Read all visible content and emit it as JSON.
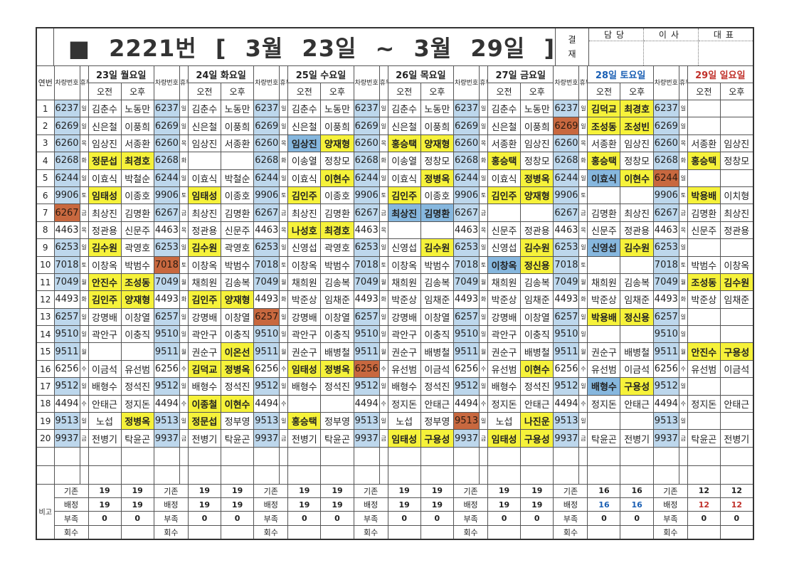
{
  "title": "■ 2221번 [ 3월 23일 ~ 3월 29일 ]",
  "approval": {
    "label_top": "결",
    "label_bottom": "재",
    "columns": [
      "담당",
      "이사",
      "대표"
    ]
  },
  "headers": {
    "seq": "연번",
    "car": "차량번호",
    "rest": "휴무",
    "am": "오전",
    "pm": "오후"
  },
  "days": [
    {
      "label": "23일 월요일",
      "color": ""
    },
    {
      "label": "24일 화요일",
      "color": ""
    },
    {
      "label": "25일 수요일",
      "color": ""
    },
    {
      "label": "26일 목요일",
      "color": ""
    },
    {
      "label": "27일 금요일",
      "color": ""
    },
    {
      "label": "28일 토요일",
      "color": "#1a5fb4"
    },
    {
      "label": "29일 일요일",
      "color": "#c0302a"
    }
  ],
  "colors": {
    "car_blue": "#bdd7ec",
    "car_orange": "#c8683f",
    "highlight_yellow": "#f6f23a",
    "highlight_blue": "#86b7de"
  },
  "rows": [
    {
      "no": "1",
      "car": "6237",
      "rest": "일",
      "car_color": "blue",
      "orange_day": -1,
      "cells": [
        [
          "김춘수",
          "노동만",
          "",
          ""
        ],
        [
          "김춘수",
          "노동만",
          "",
          ""
        ],
        [
          "김춘수",
          "노동만",
          "",
          ""
        ],
        [
          "김춘수",
          "노동만",
          "",
          ""
        ],
        [
          "김춘수",
          "노동만",
          "",
          ""
        ],
        [
          "김덕교",
          "최경호",
          "y",
          "y"
        ],
        [
          "",
          "",
          "",
          ""
        ]
      ]
    },
    {
      "no": "2",
      "car": "6269",
      "rest": "일",
      "car_color": "blue",
      "orange_day": 5,
      "cells": [
        [
          "신은철",
          "이풍희",
          "",
          ""
        ],
        [
          "신은철",
          "이풍희",
          "",
          ""
        ],
        [
          "신은철",
          "이풍희",
          "",
          ""
        ],
        [
          "신은철",
          "이풍희",
          "",
          ""
        ],
        [
          "신은철",
          "이풍희",
          "",
          ""
        ],
        [
          "조성동",
          "조성빈",
          "y",
          "y"
        ],
        [
          "",
          "",
          "",
          ""
        ]
      ]
    },
    {
      "no": "3",
      "car": "6260",
      "rest": "목",
      "car_color": "blue",
      "orange_day": -1,
      "cells": [
        [
          "임상진",
          "서종환",
          "",
          ""
        ],
        [
          "임상진",
          "서종환",
          "",
          ""
        ],
        [
          "임상진",
          "양재형",
          "b",
          "y"
        ],
        [
          "홍승택",
          "양재형",
          "y",
          "y"
        ],
        [
          "서종환",
          "임상진",
          "",
          ""
        ],
        [
          "서종환",
          "임상진",
          "",
          ""
        ],
        [
          "서종환",
          "임상진",
          "",
          ""
        ]
      ]
    },
    {
      "no": "4",
      "car": "6268",
      "rest": "화",
      "car_color": "blue",
      "orange_day": -1,
      "cells": [
        [
          "정문섭",
          "최경호",
          "y",
          "y"
        ],
        [
          "",
          "",
          "",
          ""
        ],
        [
          "이송열",
          "정창모",
          "",
          ""
        ],
        [
          "이송열",
          "정창모",
          "",
          ""
        ],
        [
          "홍승택",
          "정창모",
          "y",
          ""
        ],
        [
          "홍승택",
          "정창모",
          "y",
          ""
        ],
        [
          "홍승택",
          "정창모",
          "y",
          ""
        ]
      ]
    },
    {
      "no": "5",
      "car": "6244",
      "rest": "일",
      "car_color": "blue",
      "orange_day": 6,
      "cells": [
        [
          "이효식",
          "박철순",
          "",
          ""
        ],
        [
          "이효식",
          "박철순",
          "",
          ""
        ],
        [
          "이효식",
          "이현수",
          "",
          "y"
        ],
        [
          "이효식",
          "정병옥",
          "",
          "y"
        ],
        [
          "이효식",
          "정병옥",
          "",
          "y"
        ],
        [
          "이효식",
          "이현수",
          "b",
          "y"
        ],
        [
          "",
          "",
          "",
          ""
        ]
      ]
    },
    {
      "no": "6",
      "car": "9906",
      "rest": "토",
      "car_color": "blue",
      "orange_day": -1,
      "cells": [
        [
          "임태성",
          "이종호",
          "y",
          ""
        ],
        [
          "임태성",
          "이종호",
          "y",
          ""
        ],
        [
          "김인주",
          "이종호",
          "y",
          ""
        ],
        [
          "김인주",
          "이종호",
          "y",
          ""
        ],
        [
          "김인주",
          "양재형",
          "y",
          "y"
        ],
        [
          "",
          "",
          "",
          ""
        ],
        [
          "박용배",
          "이치형",
          "y",
          ""
        ]
      ]
    },
    {
      "no": "7",
      "car": "6267",
      "rest": "금",
      "car_color": "blue",
      "orange_day": 0,
      "cells": [
        [
          "최상진",
          "김명환",
          "",
          ""
        ],
        [
          "최상진",
          "김명환",
          "",
          ""
        ],
        [
          "최상진",
          "김명환",
          "",
          ""
        ],
        [
          "최상진",
          "김명환",
          "b",
          "b"
        ],
        [
          "",
          "",
          "",
          ""
        ],
        [
          "김명환",
          "최상진",
          "",
          ""
        ],
        [
          "김명환",
          "최상진",
          "",
          ""
        ]
      ]
    },
    {
      "no": "8",
      "car": "4463",
      "rest": "목",
      "car_color": "white",
      "orange_day": -1,
      "cells": [
        [
          "정관용",
          "신문주",
          "",
          ""
        ],
        [
          "정관용",
          "신문주",
          "",
          ""
        ],
        [
          "나성호",
          "최경호",
          "y",
          "y"
        ],
        [
          "",
          "",
          "",
          ""
        ],
        [
          "신문주",
          "정관용",
          "",
          ""
        ],
        [
          "신문주",
          "정관용",
          "",
          ""
        ],
        [
          "신문주",
          "정관용",
          "",
          ""
        ]
      ]
    },
    {
      "no": "9",
      "car": "6253",
      "rest": "일",
      "car_color": "blue",
      "orange_day": -1,
      "cells": [
        [
          "김수원",
          "곽영호",
          "y",
          ""
        ],
        [
          "김수원",
          "곽영호",
          "y",
          ""
        ],
        [
          "신영섭",
          "곽영호",
          "",
          ""
        ],
        [
          "신영섭",
          "김수원",
          "",
          "y"
        ],
        [
          "신영섭",
          "김수원",
          "",
          "y"
        ],
        [
          "신영섭",
          "김수원",
          "b",
          "y"
        ],
        [
          "",
          "",
          "",
          ""
        ]
      ]
    },
    {
      "no": "10",
      "car": "7018",
      "rest": "토",
      "car_color": "blue",
      "orange_day": 1,
      "cells": [
        [
          "이창옥",
          "박범수",
          "",
          ""
        ],
        [
          "이창옥",
          "박범수",
          "",
          ""
        ],
        [
          "이창옥",
          "박범수",
          "",
          ""
        ],
        [
          "이창옥",
          "박범수",
          "",
          ""
        ],
        [
          "이창옥",
          "정신용",
          "b",
          "y"
        ],
        [
          "",
          "",
          "",
          ""
        ],
        [
          "박범수",
          "이창옥",
          "",
          ""
        ]
      ]
    },
    {
      "no": "11",
      "car": "7049",
      "rest": "월",
      "car_color": "blue",
      "orange_day": -1,
      "cells": [
        [
          "안진수",
          "조성동",
          "y",
          "y"
        ],
        [
          "채희원",
          "김송복",
          "",
          ""
        ],
        [
          "채희원",
          "김송복",
          "",
          ""
        ],
        [
          "채희원",
          "김송복",
          "",
          ""
        ],
        [
          "채희원",
          "김송복",
          "",
          ""
        ],
        [
          "채희원",
          "김송복",
          "",
          ""
        ],
        [
          "조성동",
          "김수원",
          "y",
          "y"
        ]
      ]
    },
    {
      "no": "12",
      "car": "4493",
      "rest": "화",
      "car_color": "white",
      "orange_day": -1,
      "cells": [
        [
          "김인주",
          "양재형",
          "y",
          "y"
        ],
        [
          "김인주",
          "양재형",
          "y",
          "y"
        ],
        [
          "박준상",
          "임채준",
          "",
          ""
        ],
        [
          "박준상",
          "임채준",
          "",
          ""
        ],
        [
          "박준상",
          "임채준",
          "",
          ""
        ],
        [
          "박준상",
          "임채준",
          "",
          ""
        ],
        [
          "박준상",
          "임채준",
          "",
          ""
        ]
      ]
    },
    {
      "no": "13",
      "car": "6257",
      "rest": "일",
      "car_color": "blue",
      "orange_day": 2,
      "cells": [
        [
          "강명배",
          "이창열",
          "",
          ""
        ],
        [
          "강명배",
          "이창열",
          "",
          ""
        ],
        [
          "강명배",
          "이창열",
          "",
          ""
        ],
        [
          "강명배",
          "이창열",
          "",
          ""
        ],
        [
          "강명배",
          "이창열",
          "",
          ""
        ],
        [
          "박용배",
          "정신용",
          "y",
          "y"
        ],
        [
          "",
          "",
          "",
          ""
        ]
      ]
    },
    {
      "no": "14",
      "car": "9510",
      "rest": "일",
      "car_color": "blue",
      "orange_day": -1,
      "cells": [
        [
          "곽안구",
          "이충직",
          "",
          ""
        ],
        [
          "곽안구",
          "이충직",
          "",
          ""
        ],
        [
          "곽안구",
          "이충직",
          "",
          ""
        ],
        [
          "곽안구",
          "이충직",
          "",
          ""
        ],
        [
          "곽안구",
          "이충직",
          "",
          ""
        ],
        [
          "",
          "",
          "",
          ""
        ],
        [
          "",
          "",
          "",
          ""
        ]
      ]
    },
    {
      "no": "15",
      "car": "9511",
      "rest": "월",
      "car_color": "blue",
      "orange_day": -1,
      "cells": [
        [
          "",
          "",
          "",
          ""
        ],
        [
          "권순구",
          "이온선",
          "",
          "y"
        ],
        [
          "권순구",
          "배병철",
          "",
          ""
        ],
        [
          "권순구",
          "배병철",
          "",
          ""
        ],
        [
          "권순구",
          "배병철",
          "",
          ""
        ],
        [
          "권순구",
          "배병철",
          "",
          ""
        ],
        [
          "안진수",
          "구용성",
          "y",
          "y"
        ]
      ]
    },
    {
      "no": "16",
      "car": "6256",
      "rest": "수",
      "car_color": "white",
      "orange_day": 3,
      "cells": [
        [
          "이금석",
          "유선범",
          "",
          ""
        ],
        [
          "김덕교",
          "정병옥",
          "y",
          "y"
        ],
        [
          "임태성",
          "정병옥",
          "y",
          "y"
        ],
        [
          "유선범",
          "이금석",
          "",
          ""
        ],
        [
          "유선범",
          "이현수",
          "",
          "y"
        ],
        [
          "유선범",
          "이금석",
          "",
          ""
        ],
        [
          "유선범",
          "이금석",
          "",
          ""
        ]
      ]
    },
    {
      "no": "17",
      "car": "9512",
      "rest": "일",
      "car_color": "blue",
      "orange_day": -1,
      "cells": [
        [
          "배형수",
          "정석진",
          "",
          ""
        ],
        [
          "배형수",
          "정석진",
          "",
          ""
        ],
        [
          "배형수",
          "정석진",
          "",
          ""
        ],
        [
          "배형수",
          "정석진",
          "",
          ""
        ],
        [
          "배형수",
          "정석진",
          "",
          ""
        ],
        [
          "배형수",
          "구용성",
          "b",
          "y"
        ],
        [
          "",
          "",
          "",
          ""
        ]
      ]
    },
    {
      "no": "18",
      "car": "4494",
      "rest": "수",
      "car_color": "white",
      "orange_day": -1,
      "cells": [
        [
          "안태근",
          "정지돈",
          "",
          ""
        ],
        [
          "이종철",
          "이현수",
          "y",
          "y"
        ],
        [
          "",
          "",
          "",
          ""
        ],
        [
          "정지돈",
          "안태근",
          "",
          ""
        ],
        [
          "정지돈",
          "안태근",
          "",
          ""
        ],
        [
          "정지돈",
          "안태근",
          "",
          ""
        ],
        [
          "정지돈",
          "안태근",
          "",
          ""
        ]
      ]
    },
    {
      "no": "19",
      "car": "9513",
      "rest": "일",
      "car_color": "blue",
      "orange_day": 4,
      "cells": [
        [
          "노섭",
          "정병옥",
          "",
          "y"
        ],
        [
          "정문섭",
          "정부영",
          "y",
          ""
        ],
        [
          "홍승택",
          "정부영",
          "y",
          ""
        ],
        [
          "노섭",
          "정부영",
          "",
          ""
        ],
        [
          "노섭",
          "나진운",
          "",
          "y"
        ],
        [
          "",
          "",
          "",
          ""
        ],
        [
          "",
          "",
          "",
          ""
        ]
      ]
    },
    {
      "no": "20",
      "car": "9937",
      "rest": "금",
      "car_color": "blue",
      "orange_day": -1,
      "cells": [
        [
          "전병기",
          "탁윤곤",
          "",
          ""
        ],
        [
          "전병기",
          "탁윤곤",
          "",
          ""
        ],
        [
          "전병기",
          "탁윤곤",
          "",
          ""
        ],
        [
          "임태성",
          "구용성",
          "y",
          "y"
        ],
        [
          "임태성",
          "구용성",
          "y",
          "y"
        ],
        [
          "탁윤곤",
          "전병기",
          "",
          ""
        ],
        [
          "탁윤곤",
          "전병기",
          "",
          ""
        ]
      ]
    }
  ],
  "footer": {
    "label": "비고",
    "rows": [
      {
        "label": "기존",
        "values": [
          [
            "19",
            "19"
          ],
          [
            "19",
            "19"
          ],
          [
            "19",
            "19"
          ],
          [
            "19",
            "19"
          ],
          [
            "19",
            "19"
          ],
          [
            "16",
            "16"
          ],
          [
            "12",
            "12"
          ]
        ]
      },
      {
        "label": "배정",
        "values": [
          [
            "19",
            "19"
          ],
          [
            "19",
            "19"
          ],
          [
            "19",
            "19"
          ],
          [
            "19",
            "19"
          ],
          [
            "19",
            "19"
          ],
          [
            "16",
            "16"
          ],
          [
            "12",
            "12"
          ]
        ],
        "colored": true
      },
      {
        "label": "부족",
        "values": [
          [
            "0",
            "0"
          ],
          [
            "0",
            "0"
          ],
          [
            "0",
            "0"
          ],
          [
            "0",
            "0"
          ],
          [
            "0",
            "0"
          ],
          [
            "0",
            "0"
          ],
          [
            "0",
            "0"
          ]
        ]
      },
      {
        "label": "회수",
        "values": [
          [
            "",
            ""
          ],
          [
            "",
            ""
          ],
          [
            "",
            ""
          ],
          [
            "",
            ""
          ],
          [
            "",
            ""
          ],
          [
            "",
            ""
          ],
          [
            "",
            ""
          ]
        ]
      }
    ]
  }
}
